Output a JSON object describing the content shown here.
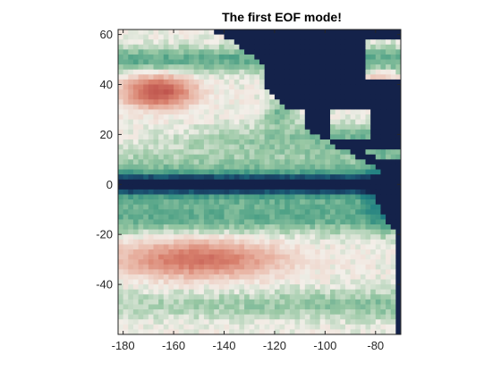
{
  "chart_data": {
    "type": "heatmap",
    "title": "The first EOF mode!",
    "xlabel": "",
    "ylabel": "",
    "xlim": [
      -182,
      -70
    ],
    "ylim": [
      -60,
      62
    ],
    "x_ticks": [
      -180,
      -160,
      -140,
      -120,
      -100,
      -80
    ],
    "y_ticks": [
      -40,
      -20,
      0,
      20,
      40,
      60
    ],
    "grid": false,
    "legend": "none",
    "grid_resolution_deg": 2,
    "land_color": "#14224a",
    "colormap": {
      "name": "diverging-teal-to-red",
      "stops": [
        {
          "value": -1.0,
          "color": "#14224a"
        },
        {
          "value": -0.8,
          "color": "#1a4d6e"
        },
        {
          "value": -0.6,
          "color": "#1f7f82"
        },
        {
          "value": -0.4,
          "color": "#4ea186"
        },
        {
          "value": -0.2,
          "color": "#97c7a3"
        },
        {
          "value": 0.0,
          "color": "#f3efe9"
        },
        {
          "value": 0.3,
          "color": "#e9b7a7"
        },
        {
          "value": 0.6,
          "color": "#d8806d"
        },
        {
          "value": 1.0,
          "color": "#bb4d48"
        }
      ]
    },
    "description": "Dominant spatial pattern of the first EOF mode over the eastern Pacific: a strong negative band along the equator, positive lobes near 37N and 30S, and continental land masked in dark navy."
  }
}
